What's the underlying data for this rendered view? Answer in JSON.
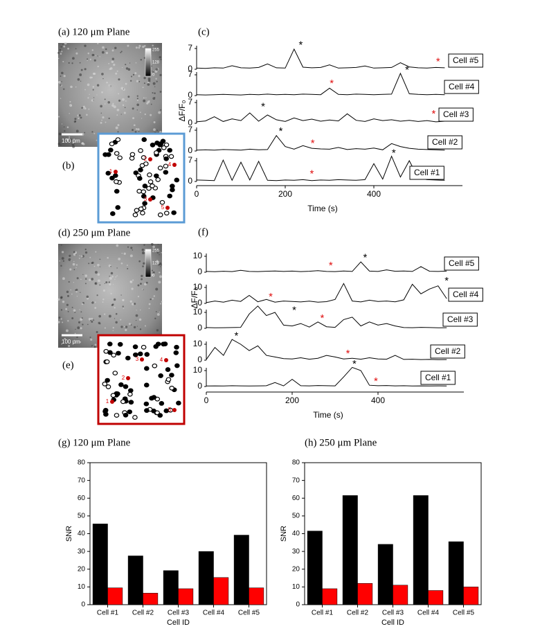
{
  "images": [
    {
      "label": "(a) 120 μm Plane",
      "scale_bar": "100 μm",
      "colorbar": [
        255,
        128,
        0
      ],
      "map_label": "(b)",
      "cell_numbers": [
        "1",
        "2",
        "3",
        "4",
        "5"
      ]
    },
    {
      "label": "(d) 250 μm Plane",
      "scale_bar": "100 μm",
      "colorbar": [
        255,
        128,
        0
      ],
      "map_label": "(e)",
      "cell_numbers": [
        "1",
        "2",
        "3",
        "4",
        "5"
      ]
    }
  ],
  "chart_data": [
    {
      "type": "line",
      "title": "(c)",
      "xlabel": "Time (s)",
      "ylabel": "ΔF/F₀",
      "x": [
        0,
        20,
        40,
        60,
        80,
        100,
        120,
        140,
        160,
        180,
        200,
        220,
        240,
        260,
        280,
        300,
        320,
        340,
        360,
        380,
        400,
        420,
        440,
        460,
        480,
        500,
        520,
        540,
        560
      ],
      "xlim": [
        0,
        600
      ],
      "xticks": [
        0,
        200,
        400
      ],
      "yticks": [
        0,
        7
      ],
      "color": "#000000",
      "series": [
        {
          "name": "Cell #5",
          "values": [
            0.4,
            0.3,
            0.5,
            0.4,
            1.2,
            0.5,
            0.4,
            0.6,
            1.8,
            0.5,
            0.4,
            6.8,
            0.7,
            0.5,
            0.6,
            1.5,
            0.4,
            0.5,
            0.6,
            1.1,
            0.4,
            0.5,
            0.6,
            2.2,
            0.8,
            0.5,
            0.4,
            0.6,
            0.5
          ],
          "markers": [
            {
              "x": 235,
              "y": 8,
              "label": "*",
              "color": "#000000"
            },
            {
              "x": 545,
              "y": 2.5,
              "label": "*",
              "color": "#e01010"
            }
          ]
        },
        {
          "name": "Cell #4",
          "values": [
            0.3,
            0.2,
            0.3,
            0.4,
            0.3,
            0.2,
            0.4,
            0.3,
            0.5,
            0.3,
            0.4,
            0.3,
            0.5,
            0.4,
            0.3,
            2.5,
            0.4,
            0.3,
            0.5,
            0.4,
            0.3,
            0.4,
            0.5,
            7.5,
            0.6,
            0.4,
            0.3,
            0.4,
            0.3
          ],
          "markers": [
            {
              "x": 475,
              "y": 8.5,
              "label": "*",
              "color": "#000000"
            },
            {
              "x": 305,
              "y": 4,
              "label": "*",
              "color": "#e01010"
            }
          ]
        },
        {
          "name": "Cell #3",
          "values": [
            0.5,
            0.8,
            2.2,
            0.6,
            1.5,
            0.9,
            3.5,
            0.7,
            2.8,
            1.2,
            0.6,
            1.8,
            0.9,
            1.4,
            0.7,
            1.1,
            0.8,
            3.2,
            1.0,
            0.6,
            1.5,
            0.9,
            1.2,
            0.7,
            1.0,
            0.6,
            0.9,
            0.5,
            0.7
          ],
          "markers": [
            {
              "x": 150,
              "y": 5.5,
              "label": "*",
              "color": "#000000"
            },
            {
              "x": 535,
              "y": 3,
              "label": "*",
              "color": "#e01010"
            }
          ]
        },
        {
          "name": "Cell #2",
          "values": [
            0.3,
            0.4,
            0.3,
            0.5,
            0.4,
            0.3,
            0.6,
            0.4,
            0.5,
            5.2,
            1.5,
            0.6,
            1.8,
            0.9,
            0.7,
            0.6,
            1.2,
            0.5,
            0.8,
            0.6,
            1.0,
            0.4,
            2.5,
            1.5,
            0.9,
            0.6,
            0.5,
            0.4,
            0.3
          ],
          "markers": [
            {
              "x": 190,
              "y": 6.5,
              "label": "*",
              "color": "#000000"
            },
            {
              "x": 262,
              "y": 2.5,
              "label": "*",
              "color": "#e01010"
            }
          ]
        },
        {
          "name": "Cell #1",
          "values": [
            0.5,
            0.4,
            0.3,
            7.2,
            0.4,
            6.5,
            0.5,
            6.8,
            0.4,
            0.3,
            0.5,
            0.4,
            0.6,
            0.3,
            0.5,
            0.4,
            0.6,
            0.5,
            0.4,
            0.6,
            6.0,
            0.8,
            8.5,
            1.5,
            7.0,
            1.2,
            0.6,
            0.5,
            0.4
          ],
          "markers": [
            {
              "x": 445,
              "y": 9.5,
              "label": "*",
              "color": "#000000"
            },
            {
              "x": 260,
              "y": 2.5,
              "label": "*",
              "color": "#e01010"
            }
          ]
        }
      ]
    },
    {
      "type": "line",
      "title": "(f)",
      "xlabel": "Time (s)",
      "ylabel": "ΔF/F₀",
      "x": [
        0,
        20,
        40,
        60,
        80,
        100,
        120,
        140,
        160,
        180,
        200,
        220,
        240,
        260,
        280,
        300,
        320,
        340,
        360,
        380,
        400,
        420,
        440,
        460,
        480,
        500,
        520,
        540,
        560
      ],
      "xlim": [
        0,
        600
      ],
      "xticks": [
        0,
        200,
        400
      ],
      "yticks": [
        0,
        10
      ],
      "color": "#000000",
      "series": [
        {
          "name": "Cell #5",
          "values": [
            0.5,
            0.3,
            0.6,
            0.4,
            1.2,
            0.5,
            0.4,
            0.6,
            0.8,
            0.5,
            0.7,
            0.4,
            0.6,
            1.0,
            0.5,
            0.4,
            0.8,
            0.5,
            6.5,
            0.7,
            0.5,
            1.5,
            0.6,
            0.8,
            0.5,
            3.5,
            0.6,
            0.5,
            0.7
          ],
          "markers": [
            {
              "x": 370,
              "y": 9,
              "label": "*",
              "color": "#000000"
            },
            {
              "x": 290,
              "y": 4,
              "label": "*",
              "color": "#e01010"
            }
          ]
        },
        {
          "name": "Cell #4",
          "values": [
            0.5,
            1.5,
            0.8,
            2.0,
            1.2,
            5.0,
            1.0,
            2.5,
            0.8,
            1.5,
            1.2,
            0.9,
            1.4,
            0.8,
            1.1,
            2.5,
            12.5,
            1.5,
            0.9,
            2.0,
            1.2,
            1.5,
            1.0,
            2.2,
            12,
            6,
            9,
            11,
            3
          ],
          "markers": [
            {
              "x": 560,
              "y": 14,
              "label": "*",
              "color": "#000000"
            },
            {
              "x": 150,
              "y": 4,
              "label": "*",
              "color": "#e01010"
            }
          ]
        },
        {
          "name": "Cell #3",
          "values": [
            0.5,
            0.3,
            0.4,
            0.5,
            0.6,
            9,
            14,
            8,
            10,
            2,
            1.5,
            3,
            0.8,
            4,
            1,
            0.6,
            5.5,
            7,
            1.5,
            4,
            2,
            3,
            1.5,
            0.5,
            0.4,
            0.6,
            0.5,
            0.3,
            0.4
          ],
          "markers": [
            {
              "x": 205,
              "y": 11,
              "label": "*",
              "color": "#000000"
            },
            {
              "x": 270,
              "y": 6,
              "label": "*",
              "color": "#e01010"
            }
          ]
        },
        {
          "name": "Cell #2",
          "values": [
            0.5,
            8,
            3,
            13,
            10,
            6,
            9,
            3,
            2,
            1,
            0.8,
            1.5,
            0.6,
            1.2,
            3,
            2,
            0.8,
            1.2,
            0.6,
            1.5,
            0.8,
            0.6,
            3,
            0.5,
            0.6,
            0.4,
            0.5,
            0.3,
            0.4
          ],
          "markers": [
            {
              "x": 70,
              "y": 15,
              "label": "*",
              "color": "#000000"
            },
            {
              "x": 330,
              "y": 4,
              "label": "*",
              "color": "#e01010"
            }
          ]
        },
        {
          "name": "Cell #1",
          "values": [
            0.3,
            0.4,
            0.3,
            0.5,
            0.4,
            0.3,
            0.4,
            0.5,
            2.5,
            0.4,
            4.5,
            0.5,
            0.4,
            0.6,
            0.5,
            0.4,
            6,
            12,
            10,
            0.8,
            0.5,
            0.6,
            0.4,
            0.5,
            0.3,
            0.4,
            0.3,
            0.4,
            0.3
          ],
          "markers": [
            {
              "x": 345,
              "y": 14,
              "label": "*",
              "color": "#000000"
            },
            {
              "x": 395,
              "y": 3,
              "label": "*",
              "color": "#e01010"
            }
          ]
        }
      ]
    },
    {
      "type": "bar",
      "title": "(g) 120 μm Plane",
      "xlabel": "Cell ID",
      "ylabel": "SNR",
      "categories": [
        "Cell #1",
        "Cell #2",
        "Cell #3",
        "Cell #4",
        "Cell #5"
      ],
      "ylim": [
        0,
        80
      ],
      "yticks": [
        0,
        10,
        20,
        30,
        40,
        50,
        60,
        70,
        80
      ],
      "series": [
        {
          "color": "#000000",
          "values": [
            45.5,
            27.5,
            19.2,
            30,
            39.2
          ]
        },
        {
          "color": "#ff0000",
          "values": [
            9.5,
            6.5,
            9,
            15.3,
            9.5
          ]
        }
      ]
    },
    {
      "type": "bar",
      "title": "(h) 250 μm Plane",
      "xlabel": "Cell ID",
      "ylabel": "SNR",
      "categories": [
        "Cell #1",
        "Cell #2",
        "Cell #3",
        "Cell #4",
        "Cell #5"
      ],
      "ylim": [
        0,
        80
      ],
      "yticks": [
        0,
        10,
        20,
        30,
        40,
        50,
        60,
        70,
        80
      ],
      "series": [
        {
          "color": "#000000",
          "values": [
            41.5,
            61.5,
            34,
            61.5,
            35.5
          ]
        },
        {
          "color": "#ff0000",
          "values": [
            9,
            12,
            11,
            8,
            10
          ]
        }
      ]
    }
  ]
}
